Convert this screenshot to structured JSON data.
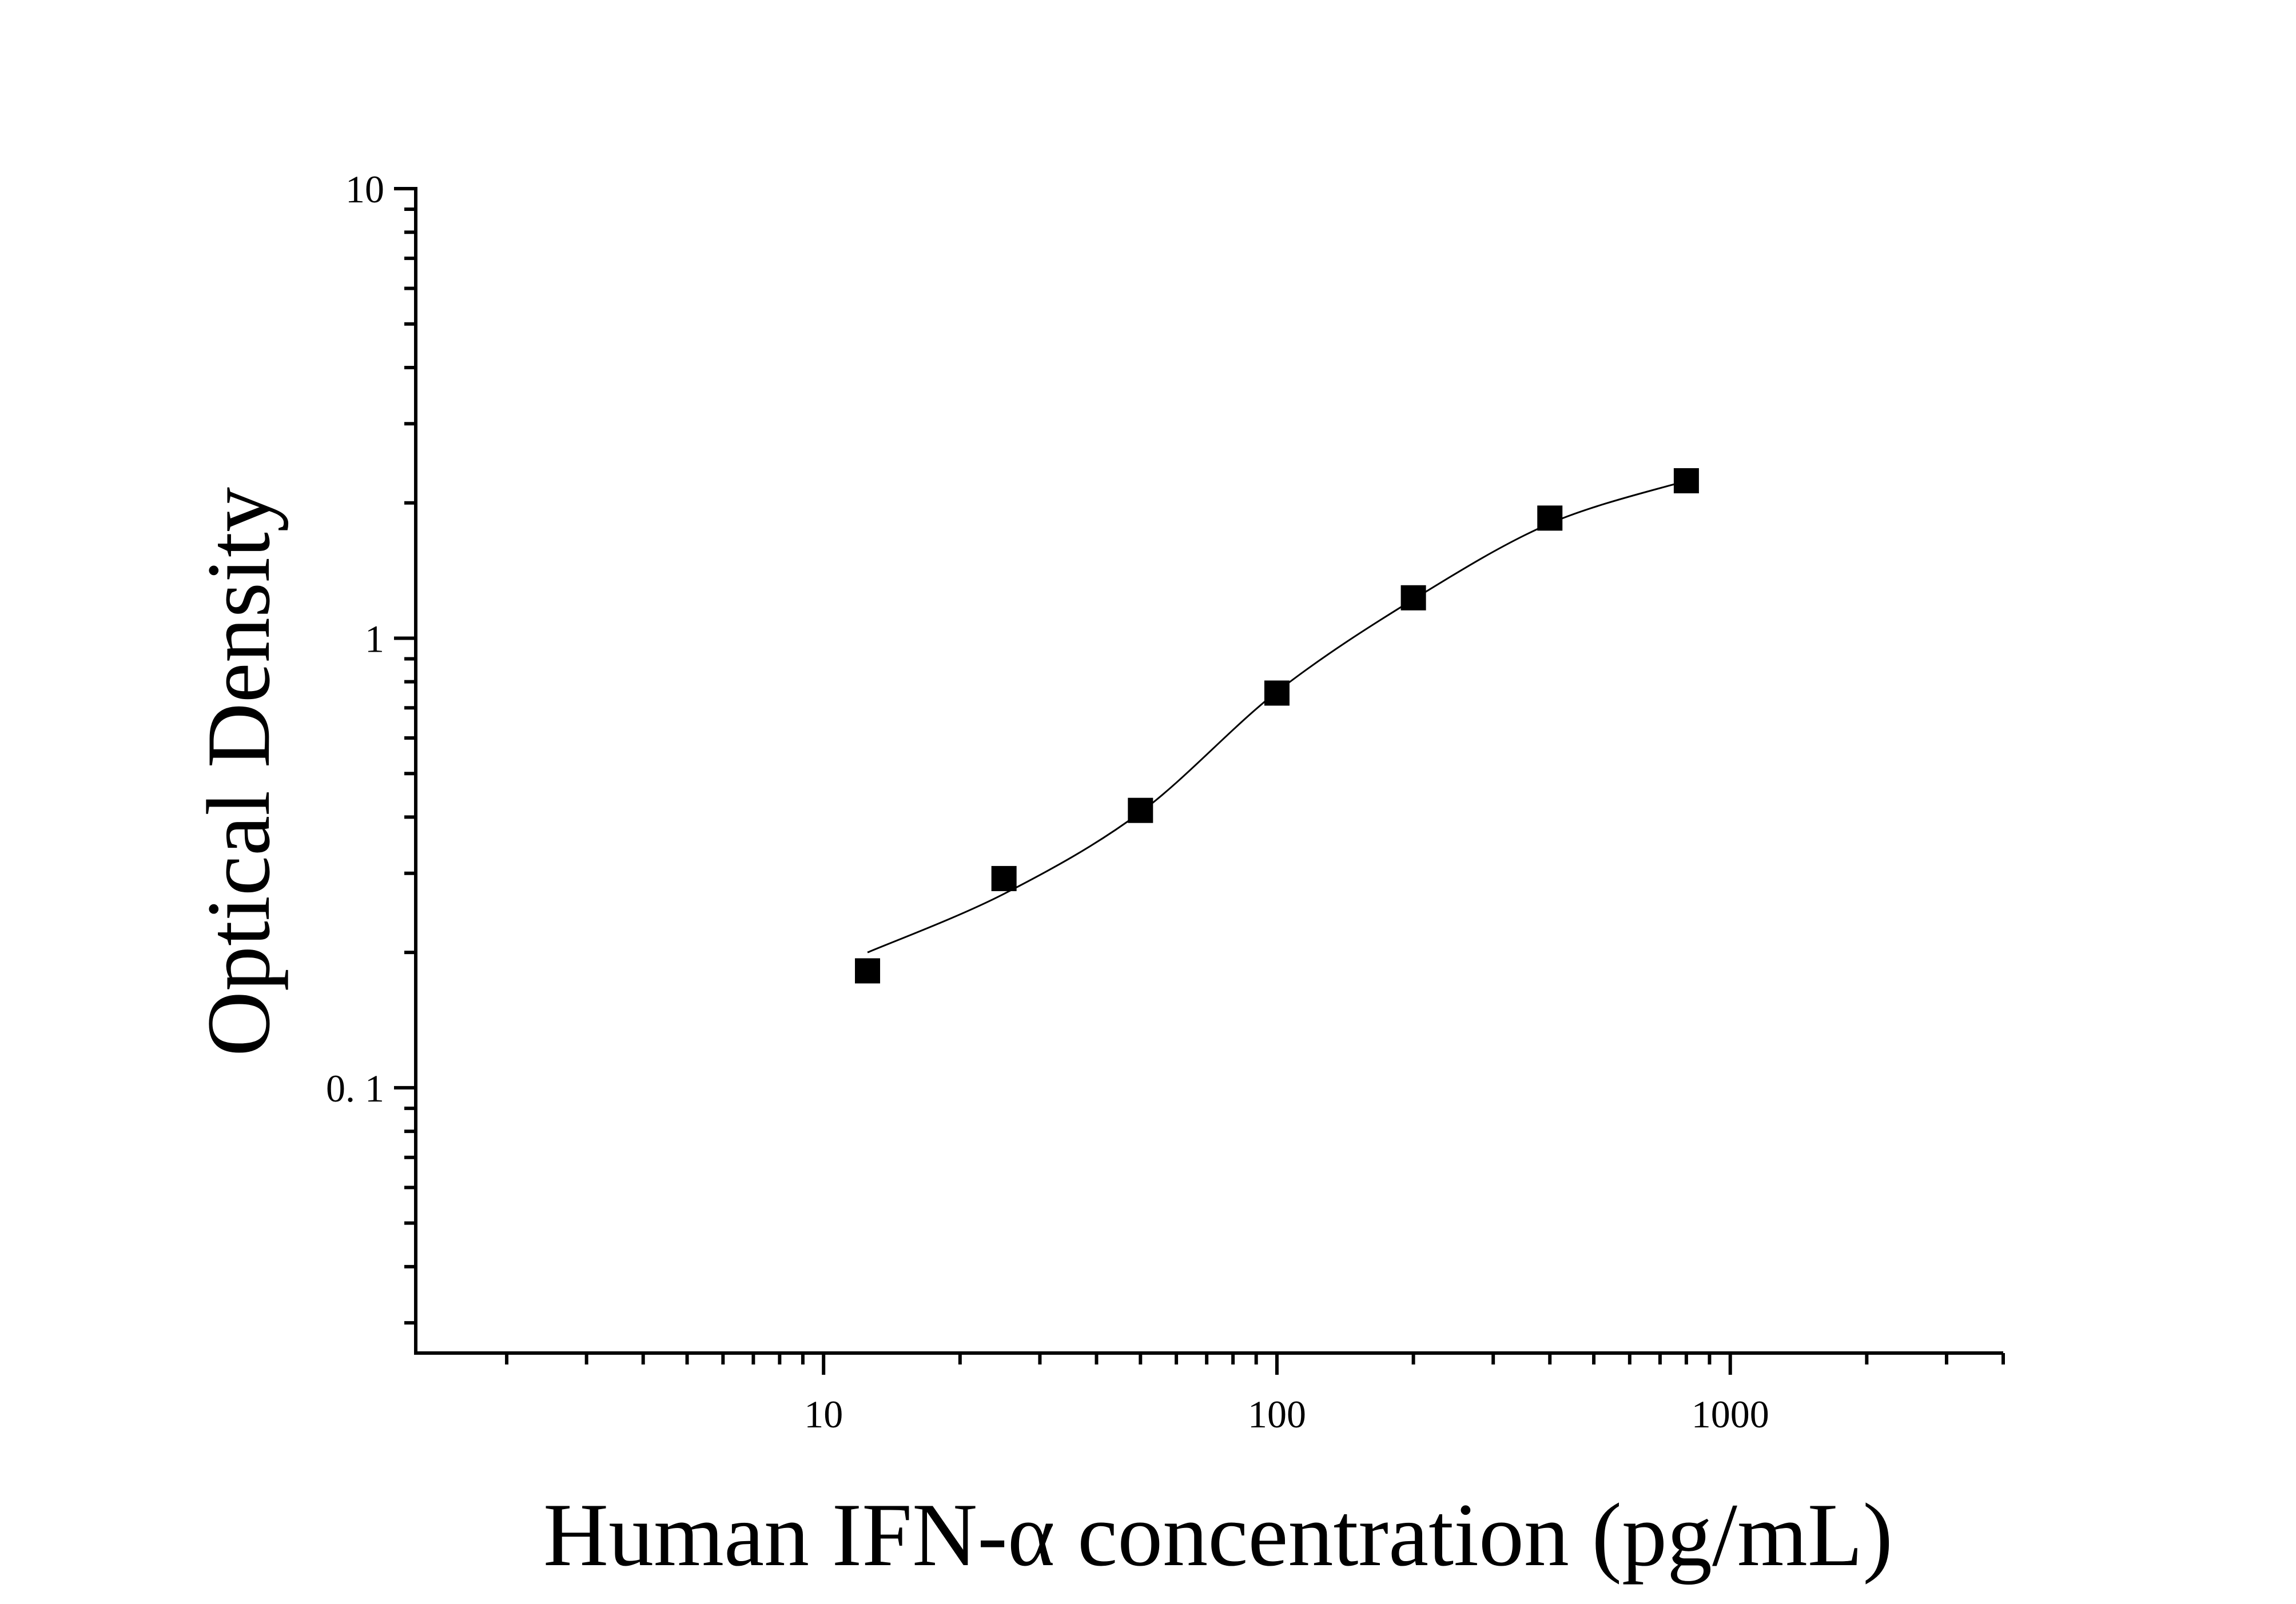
{
  "chart_data": {
    "type": "scatter",
    "title": "",
    "xlabel": "Human IFN-α concentration (pg/mL)",
    "ylabel": "Optical Density",
    "xscale": "log",
    "yscale": "log",
    "xlim": [
      1.26,
      4000
    ],
    "ylim": [
      0.0257,
      10
    ],
    "grid": false,
    "legend": "none",
    "x_ticks": [
      {
        "value": 10,
        "label": "10"
      },
      {
        "value": 100,
        "label": "100"
      },
      {
        "value": 1000,
        "label": "1000"
      }
    ],
    "y_ticks": [
      {
        "value": 0.1,
        "label": "0. 1"
      },
      {
        "value": 1,
        "label": "1"
      },
      {
        "value": 10,
        "label": "10"
      }
    ],
    "series": [
      {
        "marker": "square",
        "color": "#000000",
        "x": [
          12.5,
          25,
          50,
          100,
          200,
          400,
          800
        ],
        "y": [
          0.182,
          0.292,
          0.414,
          0.755,
          1.23,
          1.85,
          2.24
        ]
      }
    ],
    "fit_curve": {
      "color": "#000000",
      "x": [
        12.5,
        25,
        50,
        100,
        200,
        400,
        800
      ],
      "y": [
        0.2,
        0.27,
        0.41,
        0.76,
        1.22,
        1.8,
        2.24
      ]
    }
  }
}
